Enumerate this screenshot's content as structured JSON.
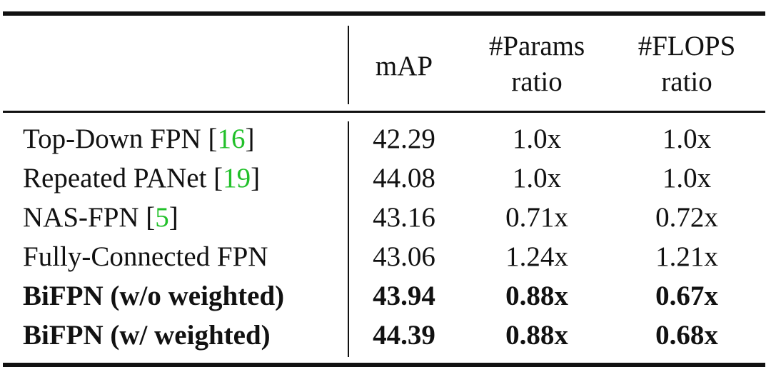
{
  "table": {
    "header": [
      "",
      "mAP",
      [
        "#Params",
        "ratio"
      ],
      [
        "#FLOPS",
        "ratio"
      ]
    ],
    "rows": [
      {
        "method": [
          "Top-Down FPN [",
          "16",
          "]"
        ],
        "cells": [
          "42.29",
          "1.0x",
          "1.0x"
        ],
        "bold": false
      },
      {
        "method": [
          "Repeated PANet [",
          "19",
          "]"
        ],
        "cells": [
          "44.08",
          "1.0x",
          "1.0x"
        ],
        "bold": false
      },
      {
        "method": [
          "NAS-FPN [",
          "5",
          "]"
        ],
        "cells": [
          "43.16",
          "0.71x",
          "0.72x"
        ],
        "bold": false
      },
      {
        "method": [
          "Fully-Connected FPN"
        ],
        "cells": [
          "43.06",
          "1.24x",
          "1.21x"
        ],
        "bold": false
      },
      {
        "method": [
          "BiFPN (w/o weighted)"
        ],
        "cells": [
          "43.94",
          "0.88x",
          "0.67x"
        ],
        "bold": true
      },
      {
        "method": [
          "BiFPN (w/ weighted)"
        ],
        "cells": [
          "44.39",
          "0.88x",
          "0.68x"
        ],
        "bold": true
      }
    ]
  }
}
